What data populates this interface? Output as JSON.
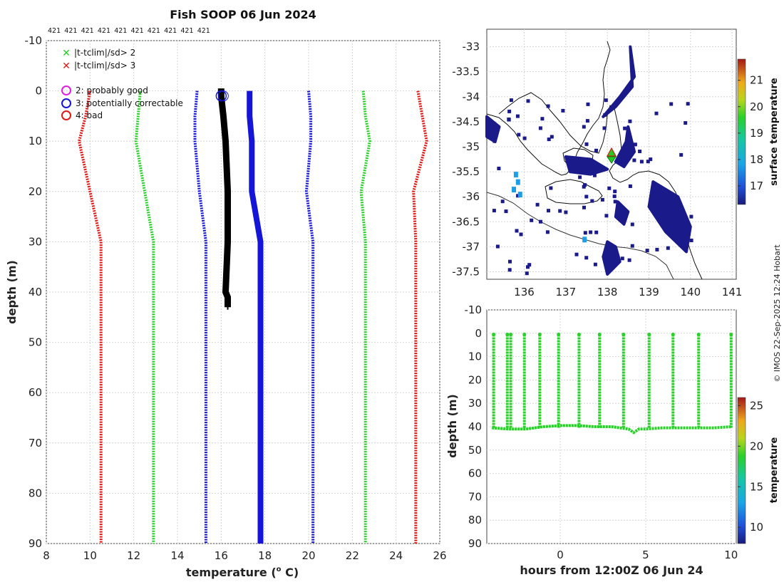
{
  "title": "Fish SOOP 06 Jun 2024",
  "counts": [
    "421",
    "421",
    "421",
    "421",
    "421",
    "421",
    "421",
    "421",
    "421",
    "421"
  ],
  "credit": "© IMOS 22-Sep-2025 12:24 Hobart",
  "legend": {
    "clim2": "|t-tclim|/sd> 2",
    "clim3": "|t-tclim|/sd> 3",
    "flag2": "2: probably good",
    "flag3": "3: potentially correctable",
    "flag4": "4: bad"
  },
  "colors": {
    "red": "#e01818",
    "green": "#2ad02a",
    "blue": "#1515d8",
    "navy": "#1a1a8a",
    "profile": "#000000",
    "cyan": "#1e9ee8"
  },
  "chart_data": [
    {
      "type": "line",
      "name": "profile",
      "xlabel": "temperature (",
      "xlabel_sup": "o",
      "xlabel_end": " C)",
      "ylabel": "depth (m)",
      "xlim": [
        8,
        26
      ],
      "ylim": [
        -10,
        90
      ],
      "xticks": [
        "8",
        "10",
        "12",
        "14",
        "16",
        "18",
        "20",
        "22",
        "24",
        "26"
      ],
      "yticks": [
        "-10",
        "0",
        "10",
        "20",
        "30",
        "40",
        "50",
        "60",
        "70",
        "80",
        "90"
      ],
      "series": [
        {
          "name": "clim -3sd",
          "color": "red",
          "depth": [
            0,
            5,
            10,
            20,
            30,
            90
          ],
          "temp": [
            10.0,
            9.8,
            9.5,
            10.0,
            10.5,
            10.5
          ]
        },
        {
          "name": "clim -2sd",
          "color": "green",
          "depth": [
            0,
            5,
            10,
            20,
            30,
            90
          ],
          "temp": [
            12.3,
            12.2,
            12.1,
            12.5,
            12.9,
            12.9
          ]
        },
        {
          "name": "clim -1sd",
          "color": "blue",
          "depth": [
            0,
            5,
            10,
            20,
            30,
            90
          ],
          "temp": [
            14.9,
            14.8,
            14.8,
            15.0,
            15.3,
            15.3
          ]
        },
        {
          "name": "clim mean",
          "color": "blue",
          "depth": [
            0,
            5,
            10,
            20,
            30,
            90
          ],
          "temp": [
            17.3,
            17.3,
            17.4,
            17.4,
            17.8,
            17.8
          ]
        },
        {
          "name": "clim +1sd",
          "color": "blue",
          "depth": [
            0,
            5,
            10,
            20,
            30,
            90
          ],
          "temp": [
            20.0,
            20.1,
            20.1,
            19.9,
            20.2,
            20.2
          ]
        },
        {
          "name": "clim +2sd",
          "color": "green",
          "depth": [
            0,
            5,
            10,
            20,
            30,
            90
          ],
          "temp": [
            22.5,
            22.6,
            22.8,
            22.4,
            22.6,
            22.6
          ]
        },
        {
          "name": "clim +3sd",
          "color": "red",
          "depth": [
            0,
            5,
            10,
            20,
            30,
            90
          ],
          "temp": [
            25.0,
            25.2,
            25.4,
            24.8,
            24.9,
            24.9
          ]
        },
        {
          "name": "observed",
          "color": "profile",
          "depth": [
            -0.5,
            1,
            5,
            10,
            20,
            30,
            40,
            41,
            43
          ],
          "temp": [
            16.0,
            16.0,
            16.1,
            16.2,
            16.3,
            16.3,
            16.2,
            16.3,
            16.3
          ]
        }
      ],
      "flag_markers": [
        {
          "temp": 16.0,
          "depth": 1
        }
      ]
    },
    {
      "type": "heatmap",
      "name": "map",
      "xlim": [
        135.1,
        141.1
      ],
      "ylim": [
        -37.65,
        -32.65
      ],
      "xticks": [
        "136",
        "137",
        "138",
        "139",
        "140",
        "141"
      ],
      "yticks": [
        "-33",
        "-33.5",
        "-34",
        "-34.5",
        "-35",
        "-35.5",
        "-36",
        "-36.5",
        "-37",
        "-37.5"
      ],
      "colorbar_label": "surface temperature",
      "colorbar_range": [
        16.3,
        21.8
      ],
      "colorbar_ticks": [
        "17",
        "18",
        "19",
        "20",
        "21"
      ],
      "position": {
        "lon": 138.1,
        "lat": -35.2
      }
    },
    {
      "type": "scatter",
      "name": "depth_time",
      "xlabel": "hours from 12:00Z 06 Jun 24",
      "ylabel": "depth (m)",
      "xlim": [
        -4.3,
        10.3
      ],
      "ylim": [
        -10,
        90
      ],
      "xticks": [
        "0",
        "5",
        "10"
      ],
      "yticks": [
        "-10",
        "0",
        "10",
        "20",
        "30",
        "40",
        "50",
        "60",
        "70",
        "80",
        "90"
      ],
      "colorbar_label": "temperature",
      "colorbar_range": [
        8,
        26
      ],
      "colorbar_ticks": [
        "10",
        "15",
        "20",
        "25"
      ],
      "casts": [
        -3.9,
        -3.1,
        -2.9,
        -2.1,
        -1.2,
        -0.1,
        1.1,
        2.3,
        3.7,
        5.2,
        6.6,
        8.1,
        10.0
      ],
      "bottom_depth": [
        [
          -4.0,
          40.5
        ],
        [
          -3.0,
          41.0
        ],
        [
          -2.0,
          41.0
        ],
        [
          -1.0,
          40.0
        ],
        [
          0.0,
          39.5
        ],
        [
          1.0,
          39.5
        ],
        [
          2.0,
          40.0
        ],
        [
          3.0,
          40.0
        ],
        [
          4.0,
          41.0
        ],
        [
          4.3,
          42.5
        ],
        [
          4.6,
          41.0
        ],
        [
          5.0,
          41.0
        ],
        [
          6.0,
          40.5
        ],
        [
          7.0,
          40.5
        ],
        [
          8.0,
          40.5
        ],
        [
          9.0,
          40.5
        ],
        [
          10.0,
          40.0
        ]
      ]
    }
  ]
}
